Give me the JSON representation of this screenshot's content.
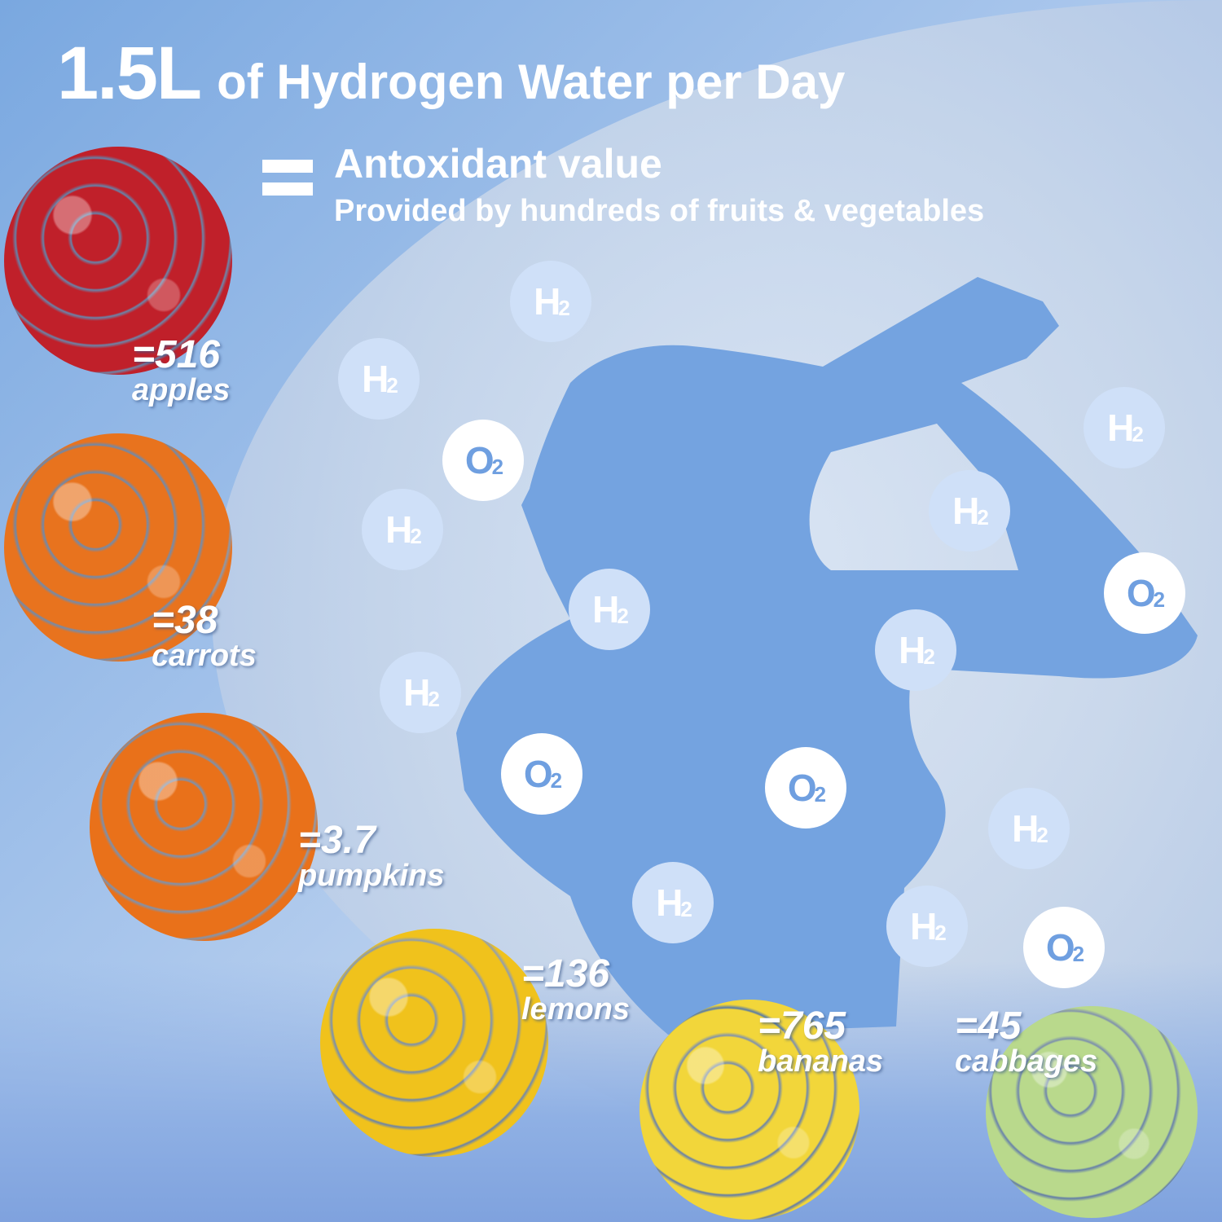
{
  "header": {
    "amount": "1.5L",
    "title_rest": "of Hydrogen Water per Day",
    "subtitle": "Antoxidant value",
    "subtitle2": "Provided by hundreds of fruits & vegetables"
  },
  "fruits": [
    {
      "value": "=516",
      "name": "apples",
      "color": "#c0202a"
    },
    {
      "value": "=38",
      "name": "carrots",
      "color": "#e8731e"
    },
    {
      "value": "=3.7",
      "name": "pumpkins",
      "color": "#e9711a"
    },
    {
      "value": "=136",
      "name": "lemons",
      "color": "#f0c21c"
    },
    {
      "value": "=765",
      "name": "bananas",
      "color": "#f2d63a"
    },
    {
      "value": "=45",
      "name": "cabbages",
      "color": "#b9d98c"
    }
  ],
  "bubbles": [
    {
      "type": "h2",
      "base": "H",
      "sub": "2"
    },
    {
      "type": "h2",
      "base": "H",
      "sub": "2"
    },
    {
      "type": "h2",
      "base": "H",
      "sub": "2"
    },
    {
      "type": "h2",
      "base": "H",
      "sub": "2"
    },
    {
      "type": "h2",
      "base": "H",
      "sub": "2"
    },
    {
      "type": "h2",
      "base": "H",
      "sub": "2"
    },
    {
      "type": "h2",
      "base": "H",
      "sub": "2"
    },
    {
      "type": "h2",
      "base": "H",
      "sub": "2"
    },
    {
      "type": "h2",
      "base": "H",
      "sub": "2"
    },
    {
      "type": "h2",
      "base": "H",
      "sub": "2"
    },
    {
      "type": "h2",
      "base": "H",
      "sub": "2"
    },
    {
      "type": "o2",
      "base": "O",
      "sub": "2"
    },
    {
      "type": "o2",
      "base": "O",
      "sub": "2"
    },
    {
      "type": "o2",
      "base": "O",
      "sub": "2"
    },
    {
      "type": "o2",
      "base": "O",
      "sub": "2"
    },
    {
      "type": "o2",
      "base": "O",
      "sub": "2"
    }
  ],
  "colors": {
    "silhouette": "#74a3e0",
    "h2_bubble": "#cfe0f8",
    "o2_text": "#6f9fe0"
  }
}
